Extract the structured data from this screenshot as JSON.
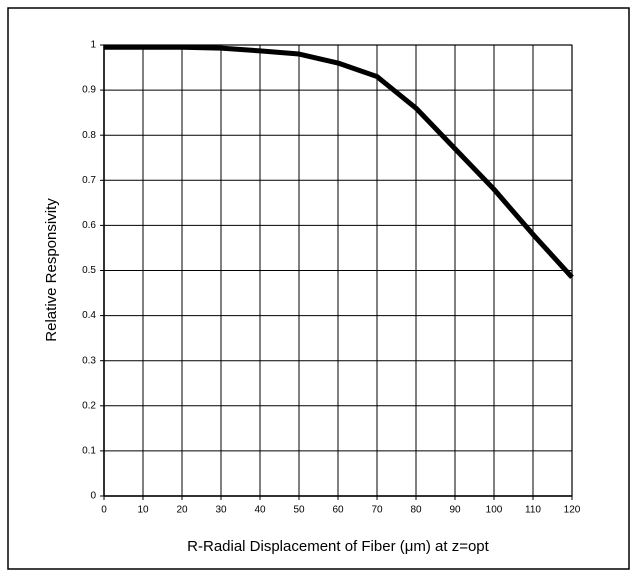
{
  "chart_data": {
    "type": "line",
    "x_label": "R-Radial Displacement of Fiber (μm) at z=opt",
    "y_label": "Relative Responsivity",
    "x": [
      0,
      10,
      20,
      30,
      40,
      50,
      60,
      70,
      80,
      90,
      100,
      110,
      120
    ],
    "series": [
      {
        "color": "#000000",
        "values": [
          0.995,
          0.995,
          0.995,
          0.993,
          0.987,
          0.98,
          0.96,
          0.93,
          0.86,
          0.77,
          0.68,
          0.58,
          0.485
        ]
      }
    ],
    "xlim": [
      0,
      120
    ],
    "xticks": [
      0,
      10,
      20,
      30,
      40,
      50,
      60,
      70,
      80,
      90,
      100,
      110,
      120
    ],
    "ylim": [
      0,
      1
    ],
    "yticks": [
      0,
      0.1,
      0.2,
      0.3,
      0.4,
      0.5,
      0.6,
      0.7,
      0.8,
      0.9,
      1
    ],
    "grid": true
  }
}
